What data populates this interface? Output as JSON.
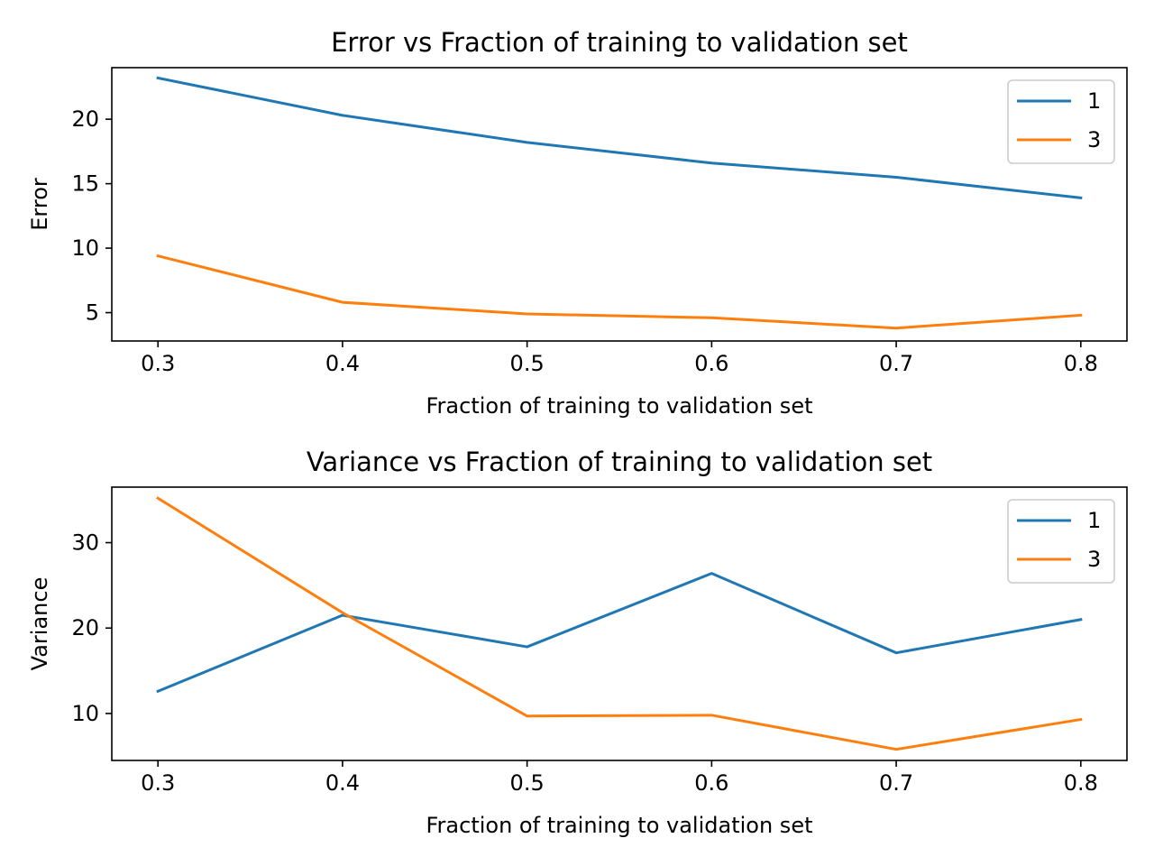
{
  "chart_data": [
    {
      "type": "line",
      "title": "Error vs Fraction of training to validation set",
      "xlabel": "Fraction of training to validation set",
      "ylabel": "Error",
      "x": [
        0.3,
        0.4,
        0.5,
        0.6,
        0.7,
        0.8
      ],
      "xticks": [
        "0.3",
        "0.4",
        "0.5",
        "0.6",
        "0.7",
        "0.8"
      ],
      "yticks": [
        5,
        10,
        15,
        20
      ],
      "xlim": [
        0.275,
        0.825
      ],
      "ylim": [
        2.8,
        24.0
      ],
      "legend": "top-right",
      "grid": false,
      "series": [
        {
          "name": "1",
          "color": "#1f77b4",
          "values": [
            23.2,
            20.3,
            18.2,
            16.6,
            15.5,
            13.9
          ]
        },
        {
          "name": "3",
          "color": "#ff7f0e",
          "values": [
            9.4,
            5.8,
            4.9,
            4.6,
            3.8,
            4.8
          ]
        }
      ]
    },
    {
      "type": "line",
      "title": "Variance vs Fraction of training to validation set",
      "xlabel": "Fraction of training to validation set",
      "ylabel": "Variance",
      "x": [
        0.3,
        0.4,
        0.5,
        0.6,
        0.7,
        0.8
      ],
      "xticks": [
        "0.3",
        "0.4",
        "0.5",
        "0.6",
        "0.7",
        "0.8"
      ],
      "yticks": [
        10,
        20,
        30
      ],
      "xlim": [
        0.275,
        0.825
      ],
      "ylim": [
        4.5,
        36.5
      ],
      "legend": "top-right",
      "grid": false,
      "series": [
        {
          "name": "1",
          "color": "#1f77b4",
          "values": [
            12.6,
            21.5,
            17.8,
            26.4,
            17.1,
            21.0
          ]
        },
        {
          "name": "3",
          "color": "#ff7f0e",
          "values": [
            35.2,
            21.8,
            9.7,
            9.8,
            5.8,
            9.3
          ]
        }
      ]
    }
  ]
}
